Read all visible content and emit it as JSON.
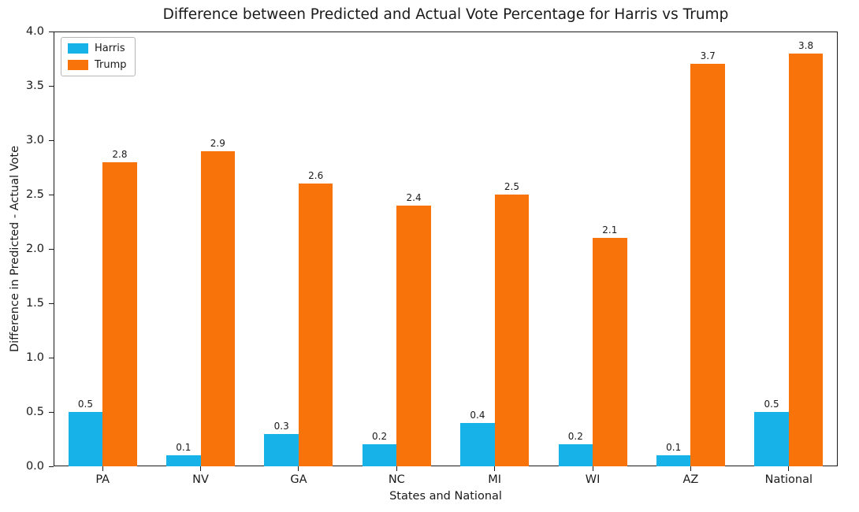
{
  "chart_data": {
    "type": "bar",
    "title": "Difference between Predicted and Actual Vote Percentage for Harris vs Trump",
    "xlabel": "States and National",
    "ylabel": "Difference in Predicted - Actual Vote",
    "categories": [
      "PA",
      "NV",
      "GA",
      "NC",
      "MI",
      "WI",
      "AZ",
      "National"
    ],
    "series": [
      {
        "name": "Harris",
        "color": "#17b2e8",
        "values": [
          0.5,
          0.1,
          0.3,
          0.2,
          0.4,
          0.2,
          0.1,
          0.5
        ]
      },
      {
        "name": "Trump",
        "color": "#f9730b",
        "values": [
          2.8,
          2.9,
          2.6,
          2.4,
          2.5,
          2.1,
          3.7,
          3.8
        ]
      }
    ],
    "ylim": [
      0,
      4.0
    ],
    "ytick_step": 0.5,
    "bar_width_frac": 0.35,
    "legend_position": "upper left",
    "grid": false,
    "value_label_decimals": 1
  }
}
